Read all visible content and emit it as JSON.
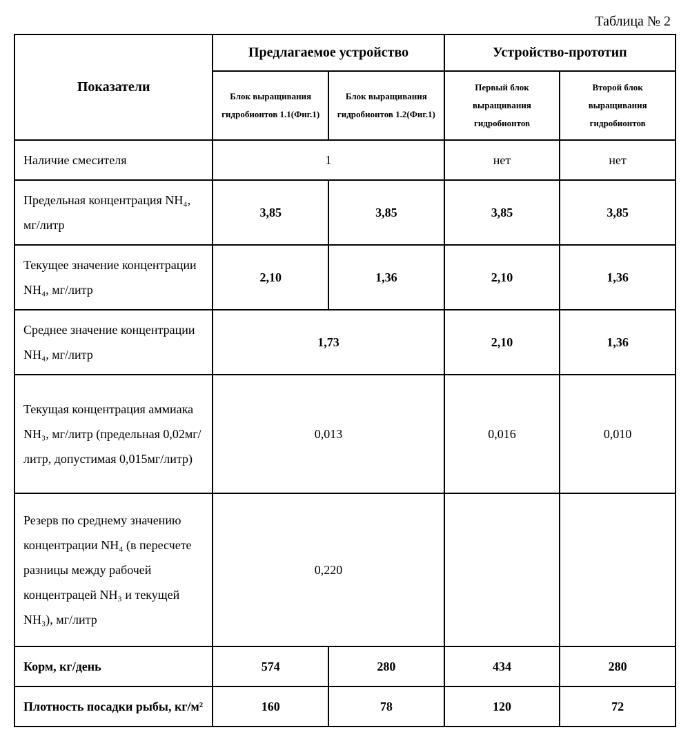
{
  "caption": "Таблица № 2",
  "head": {
    "indicators": "Показатели",
    "group1": "Предлагаемое устройство",
    "group2": "Устройство-прототип",
    "sub1": "Блок выращивания гидробионтов 1.1(Фиг.1)",
    "sub2": "Блок выращивания гидробионтов 1.2(Фиг.1)",
    "sub3": "Первый блок выращивания гидробионтов",
    "sub4": "Второй блок выращивания гидробионтов"
  },
  "rows": {
    "r0": {
      "label": "Наличие смесителя",
      "m12": "1",
      "c3": "нет",
      "c4": "нет"
    },
    "r1": {
      "label": "Предельная концентрация NH₄, мг/литр",
      "c1": "3,85",
      "c2": "3,85",
      "c3": "3,85",
      "c4": "3,85"
    },
    "r2": {
      "label": "Текущее значение концентрации NH₄, мг/литр",
      "c1": "2,10",
      "c2": "1,36",
      "c3": "2,10",
      "c4": "1,36"
    },
    "r3": {
      "label": "Среднее значение концентрации NH₄, мг/литр",
      "m12": "1,73",
      "c3": "2,10",
      "c4": "1,36"
    },
    "r4": {
      "label": "Текущая концентрация аммиака NH₃, мг/литр\n (предельная 0,02мг/литр, допустимая 0,015мг/литр)",
      "m12": "0,013",
      "c3": "0,016",
      "c4": "0,010"
    },
    "r5": {
      "label": "Резерв по среднему значению концентрации NH₄ (в пересчете разницы между рабочей концентрацей NH₃ и текущей NH₃), мг/литр",
      "m12": "0,220",
      "c3": "",
      "c4": ""
    },
    "r6": {
      "label": "Корм, кг/день",
      "c1": "574",
      "c2": "280",
      "c3": "434",
      "c4": "280"
    },
    "r7": {
      "label": "Плотность посадки рыбы, кг/м²",
      "c1": "160",
      "c2": "78",
      "c3": "120",
      "c4": "72"
    }
  }
}
